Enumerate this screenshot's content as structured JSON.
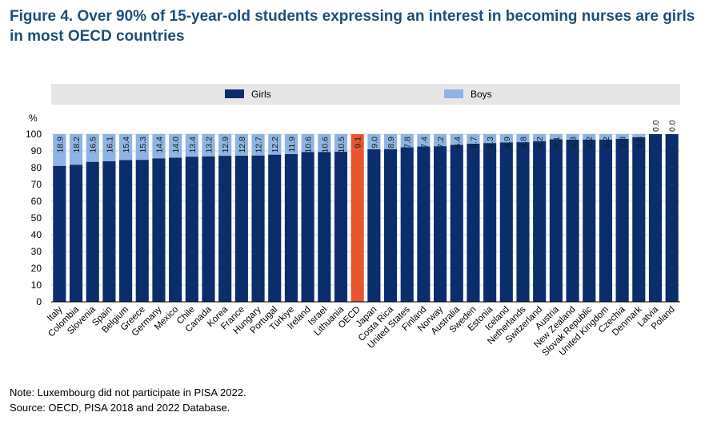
{
  "title": "Figure 4. Over 90% of 15-year-old students expressing an interest in becoming nurses are girls in most OECD countries",
  "note": "Note: Luxembourg did not participate in PISA 2022.",
  "source": "Source: OECD, PISA 2018 and 2022 Database.",
  "colors": {
    "girls": "#0b2d6b",
    "boys": "#8fb4e3",
    "highlight": "#e8552e",
    "legend_bg": "#e6e6e6",
    "title": "#1f4e79"
  },
  "chart_data": {
    "type": "bar",
    "stacked": true,
    "ylabel": "%",
    "ylim": [
      0,
      100
    ],
    "yticks": [
      0,
      10,
      20,
      30,
      40,
      50,
      60,
      70,
      80,
      90,
      100
    ],
    "legend": {
      "position": "top",
      "entries": [
        "Girls",
        "Boys"
      ]
    },
    "highlight_category": "OECD",
    "categories": [
      "Italy",
      "Colombia",
      "Slovenia",
      "Spain",
      "Belgium",
      "Greece",
      "Germany",
      "Mexico",
      "Chile",
      "Canada",
      "Korea",
      "France",
      "Hungary",
      "Portugal",
      "Türkiye",
      "Ireland",
      "Israel",
      "Lithuania",
      "OECD",
      "Japan",
      "Costa Rica",
      "United States",
      "Finland",
      "Norway",
      "Australia",
      "Sweden",
      "Estonia",
      "Iceland",
      "Netherlands",
      "Switzerland",
      "Austria",
      "New Zealand",
      "Slovak Republic",
      "United Kingdom",
      "Czechia",
      "Denmark",
      "Latvia",
      "Poland"
    ],
    "series": [
      {
        "name": "Girls",
        "values": [
          81.1,
          81.8,
          83.5,
          83.9,
          84.6,
          84.7,
          85.6,
          86.0,
          86.6,
          86.8,
          87.1,
          87.2,
          87.3,
          87.8,
          88.1,
          89.4,
          89.4,
          89.5,
          90.9,
          91.0,
          91.1,
          92.2,
          92.6,
          92.8,
          93.6,
          94.3,
          94.7,
          95.1,
          95.2,
          95.8,
          96.9,
          96.7,
          96.8,
          96.8,
          97.2,
          98.2,
          100.0,
          100.0
        ]
      },
      {
        "name": "Boys",
        "values": [
          18.9,
          18.2,
          16.5,
          16.1,
          15.4,
          15.3,
          14.4,
          14.0,
          13.4,
          13.2,
          12.9,
          12.8,
          12.7,
          12.2,
          11.9,
          10.6,
          10.6,
          10.5,
          9.1,
          9.0,
          8.9,
          7.8,
          7.4,
          7.2,
          6.4,
          5.7,
          5.3,
          4.9,
          4.8,
          4.2,
          3.1,
          3.3,
          3.2,
          3.2,
          2.8,
          1.8,
          0.0,
          0.0
        ]
      }
    ],
    "data_labels": [
      "18.9",
      "18.2",
      "16.5",
      "16.1",
      "15.4",
      "15.3",
      "14.4",
      "14.0",
      "13.4",
      "13.2",
      "12.9",
      "12.8",
      "12.7",
      "12.2",
      "11.9",
      "10.6",
      "10.6",
      "10.5",
      "9.1",
      "9.0",
      "8.9",
      "7.8",
      "7.4",
      "7.2",
      "6.4",
      "5.7",
      "5.3",
      "4.9",
      "4.8",
      "4.2",
      "3.1",
      "3.3",
      "3.2",
      "3.2",
      "2.8",
      "1.8",
      "0.0",
      "0.0"
    ]
  }
}
